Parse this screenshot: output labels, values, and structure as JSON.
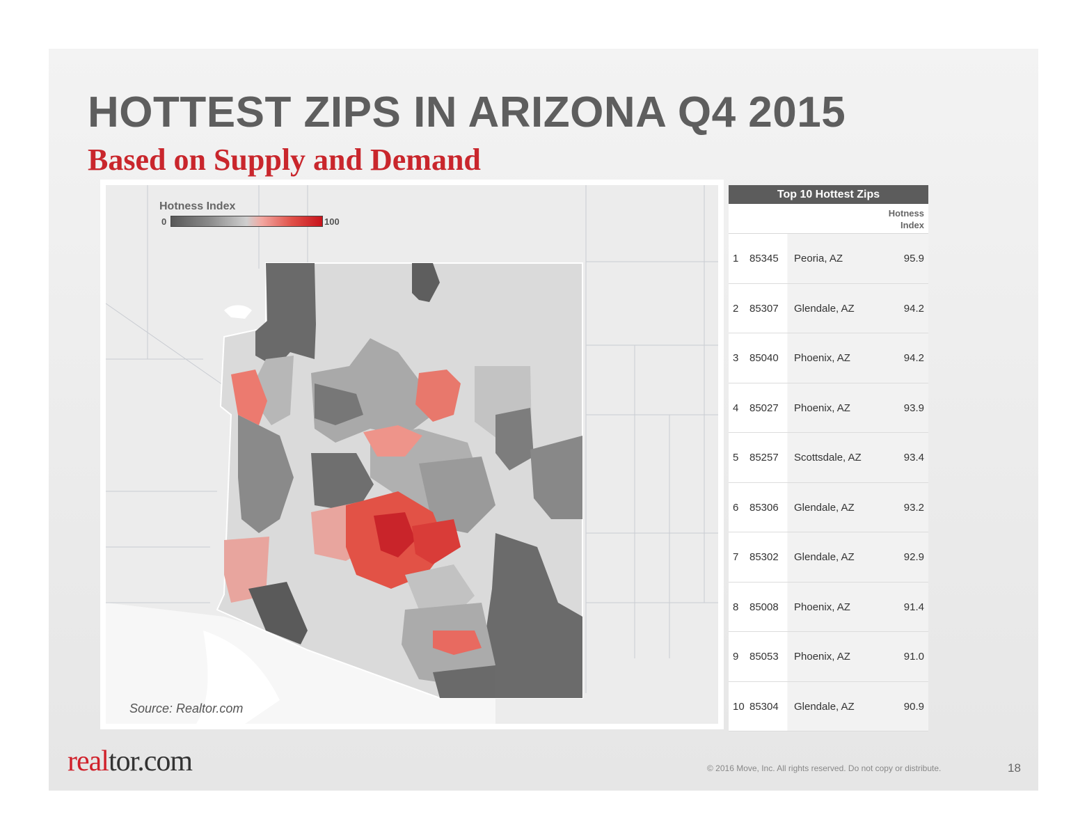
{
  "slide": {
    "title": "HOTTEST ZIPS IN ARIZONA Q4 2015",
    "subtitle": "Based on Supply and Demand",
    "page_number": "18",
    "copyright": "© 2016 Move, Inc.  All rights reserved.  Do not copy or distribute.",
    "logo_part1": "real",
    "logo_part2": "tor.com"
  },
  "map": {
    "legend_title": "Hotness Index",
    "legend_min": "0",
    "legend_max": "100",
    "source": "Source: Realtor.com",
    "colors": {
      "low": "#585858",
      "mid": "#cfcfcf",
      "high": "#c8141c",
      "background": "#ececec"
    }
  },
  "table": {
    "title": "Top 10 Hottest Zips",
    "column_header": "Hotness Index",
    "rows": [
      {
        "rank": "1",
        "zip": "85345",
        "city": "Peoria, AZ",
        "score": "95.9"
      },
      {
        "rank": "2",
        "zip": "85307",
        "city": "Glendale, AZ",
        "score": "94.2"
      },
      {
        "rank": "3",
        "zip": "85040",
        "city": "Phoenix, AZ",
        "score": "94.2"
      },
      {
        "rank": "4",
        "zip": "85027",
        "city": "Phoenix, AZ",
        "score": "93.9"
      },
      {
        "rank": "5",
        "zip": "85257",
        "city": "Scottsdale, AZ",
        "score": "93.4"
      },
      {
        "rank": "6",
        "zip": "85306",
        "city": "Glendale, AZ",
        "score": "93.2"
      },
      {
        "rank": "7",
        "zip": "85302",
        "city": "Glendale, AZ",
        "score": "92.9"
      },
      {
        "rank": "8",
        "zip": "85008",
        "city": "Phoenix, AZ",
        "score": "91.4"
      },
      {
        "rank": "9",
        "zip": "85053",
        "city": "Phoenix, AZ",
        "score": "91.0"
      },
      {
        "rank": "10",
        "zip": "85304",
        "city": "Glendale, AZ",
        "score": "90.9"
      }
    ]
  }
}
